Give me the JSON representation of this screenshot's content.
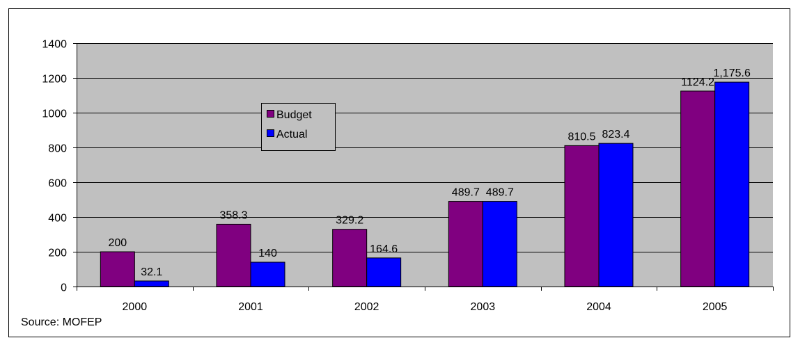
{
  "chart_data": {
    "type": "bar",
    "categories": [
      "2000",
      "2001",
      "2002",
      "2003",
      "2004",
      "2005"
    ],
    "series": [
      {
        "name": "Budget",
        "values": [
          200,
          358.3,
          329.2,
          489.7,
          810.5,
          1124.2
        ],
        "labels": [
          "200",
          "358.3",
          "329.2",
          "489.7",
          "810.5",
          "1124.2"
        ],
        "color": "#800080"
      },
      {
        "name": "Actual",
        "values": [
          32.1,
          140,
          164.6,
          489.7,
          823.4,
          1175.6
        ],
        "labels": [
          "32.1",
          "140",
          "164.6",
          "489.7",
          "823.4",
          "1,175.6"
        ],
        "color": "#0000ff"
      }
    ],
    "ylim": [
      0,
      1400
    ],
    "yticks": [
      "0",
      "200",
      "400",
      "600",
      "800",
      "1000",
      "1200",
      "1400"
    ],
    "grid": true,
    "plot_background": "#c0c0c0",
    "legend_position": "upper-left-center"
  },
  "source": "Source:  MOFEP"
}
